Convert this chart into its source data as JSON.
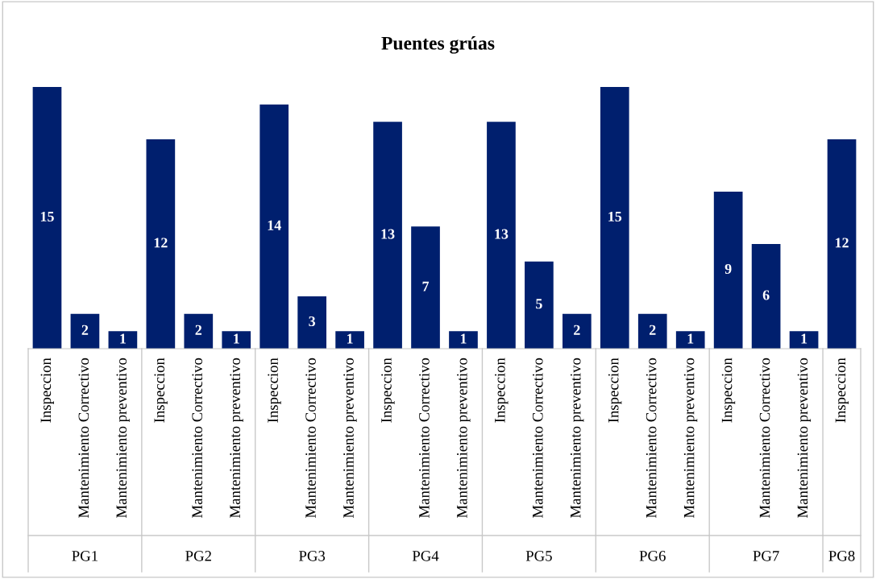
{
  "chart_data": {
    "type": "bar",
    "title": "Puentes grúas",
    "categories": [
      "Inspeccion",
      "Mantenimiento Correctivo",
      "Mantenimiento preventivo",
      "Inspeccion",
      "Mantenimiento Correctivo",
      "Mantenimiento preventivo",
      "Inspeccion",
      "Mantenimiento Correctivo",
      "Mantenimiento preventivo",
      "Inspeccion",
      "Mantenimiento Correctivo",
      "Mantenimiento preventivo",
      "Inspeccion",
      "Mantenimiento Correctivo",
      "Mantenimiento preventivo",
      "Inspeccion",
      "Mantenimiento Correctivo",
      "Mantenimiento preventivo",
      "Inspeccion",
      "Mantenimiento Correctivo",
      "Mantenimiento preventivo",
      "Inspeccion"
    ],
    "values": [
      15,
      2,
      1,
      12,
      2,
      1,
      14,
      3,
      1,
      13,
      7,
      1,
      13,
      5,
      2,
      15,
      2,
      1,
      9,
      6,
      1,
      12
    ],
    "color": "#001f6e",
    "data_labels": true,
    "grid": false,
    "legend": false,
    "annotations": [
      "PG1",
      "PG2",
      "PG3",
      "PG4",
      "PG5",
      "PG6",
      "PG7",
      "PG8"
    ]
  }
}
